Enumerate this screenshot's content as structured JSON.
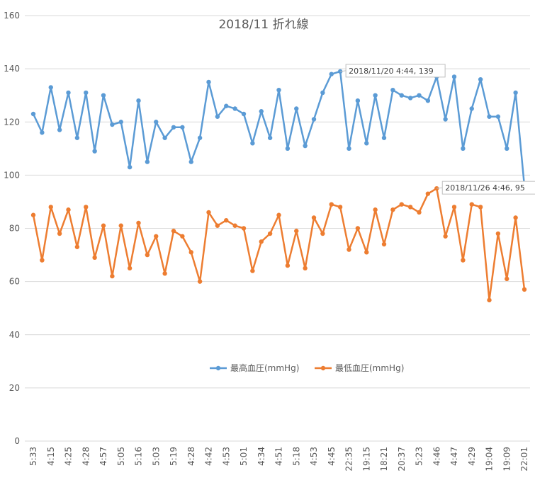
{
  "chart_data": {
    "type": "line",
    "title": "2018/11  折れ線",
    "ylim": [
      0,
      160
    ],
    "yticks": [
      0,
      20,
      40,
      60,
      80,
      100,
      120,
      140,
      160
    ],
    "grid": true,
    "legend_position": "bottom-center",
    "x": [
      "5:33",
      "",
      "4:15",
      "",
      "4:25",
      "",
      "4:28",
      "",
      "4:57",
      "",
      "5:05",
      "",
      "5:16",
      "",
      "5:03",
      "",
      "5:19",
      "",
      "4:28",
      "",
      "4:42",
      "",
      "4:53",
      "",
      "5:01",
      "",
      "4:34",
      "",
      "4:51",
      "",
      "5:18",
      "",
      "4:53",
      "",
      "4:45",
      "",
      "22:35",
      "",
      "19:15",
      "",
      "18:21",
      "",
      "20:37",
      "",
      "5:23",
      "",
      "4:46",
      "",
      "4:47",
      "",
      "4:29",
      "",
      "19:04",
      "",
      "19:09",
      "",
      "22:01"
    ],
    "series": [
      {
        "name": "最高血圧(mmHg)",
        "color": "#5B9BD5",
        "values": [
          123,
          116,
          133,
          117,
          131,
          114,
          131,
          109,
          130,
          119,
          120,
          103,
          128,
          105,
          120,
          114,
          118,
          118,
          105,
          114,
          135,
          122,
          126,
          125,
          123,
          112,
          124,
          114,
          132,
          110,
          125,
          111,
          121,
          131,
          138,
          139,
          110,
          128,
          112,
          130,
          114,
          132,
          130,
          129,
          130,
          128,
          137,
          121,
          137,
          110,
          125,
          136,
          122,
          122,
          110,
          131,
          96
        ]
      },
      {
        "name": "最低血圧(mmHg)",
        "color": "#ED7D31",
        "values": [
          85,
          68,
          88,
          78,
          87,
          73,
          88,
          69,
          81,
          62,
          81,
          65,
          82,
          70,
          77,
          63,
          79,
          77,
          71,
          60,
          86,
          81,
          83,
          81,
          80,
          64,
          75,
          78,
          85,
          66,
          79,
          65,
          84,
          78,
          89,
          88,
          72,
          80,
          71,
          87,
          74,
          87,
          89,
          88,
          86,
          93,
          95,
          77,
          88,
          68,
          89,
          88,
          53,
          78,
          61,
          84,
          57
        ]
      }
    ],
    "annotations": [
      {
        "series": 0,
        "index": 35,
        "text": "2018/11/20 4:44, 139"
      },
      {
        "series": 1,
        "index": 46,
        "text": "2018/11/26 4:46, 95"
      }
    ]
  }
}
